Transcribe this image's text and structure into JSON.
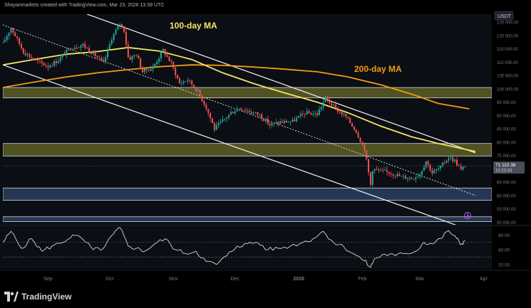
{
  "header": {
    "text": "Shayanmarkets created with TradingView.com, Mar 23, 2026 13:39 UTC"
  },
  "footer": {
    "brand": "TradingView"
  },
  "chart_data": {
    "type": "candlestick",
    "currency_label": "USDT",
    "last_price": "71 110.38",
    "countdown": "10:23:33",
    "annotations": [
      {
        "text": "100-day MA",
        "color": "#f5e663"
      },
      {
        "text": "200-day MA",
        "color": "#f39c12"
      }
    ],
    "x_ticks": [
      {
        "label": "Sep",
        "date": "2025-09-01"
      },
      {
        "label": "Oct",
        "date": "2025-10-01"
      },
      {
        "label": "Nov",
        "date": "2025-11-01"
      },
      {
        "label": "Dec",
        "date": "2025-12-01"
      },
      {
        "label": "2026",
        "date": "2026-01-01"
      },
      {
        "label": "Feb",
        "date": "2026-02-01"
      },
      {
        "label": "Mar",
        "date": "2026-03-01"
      },
      {
        "label": "Apr",
        "date": "2026-04-01"
      }
    ],
    "x_range": [
      "2025-08-10",
      "2026-04-05"
    ],
    "y_ticks": [
      "125 000.00",
      "120 000.00",
      "115 000.00",
      "110 000.00",
      "105 000.00",
      "100 000.00",
      "95 000.00",
      "90 000.00",
      "85 000.00",
      "80 000.00",
      "75 000.00",
      "70 000.00",
      "65 000.00",
      "60 000.00",
      "55 000.00",
      "50 000.00"
    ],
    "y_range": [
      49000,
      128000
    ],
    "zones": [
      {
        "from": 96600,
        "to": 100500,
        "color": "#8a8a30"
      },
      {
        "from": 74800,
        "to": 79500,
        "color": "#8a8a30"
      },
      {
        "from": 58200,
        "to": 62800,
        "color": "#3d5a8a"
      },
      {
        "from": 50200,
        "to": 52000,
        "color": "#3d5a8a"
      }
    ],
    "channel": {
      "upper": [
        [
          "2025-09-20",
          128000
        ],
        [
          "2026-03-28",
          76000
        ]
      ],
      "middle": [
        [
          "2025-08-10",
          124000
        ],
        [
          "2026-03-28",
          60000
        ]
      ],
      "lower": [
        [
          "2025-08-10",
          109000
        ],
        [
          "2026-03-20",
          48500
        ]
      ]
    },
    "ma100": [
      [
        "2025-08-10",
        109000
      ],
      [
        "2025-08-25",
        111000
      ],
      [
        "2025-09-10",
        113000
      ],
      [
        "2025-09-25",
        114000
      ],
      [
        "2025-10-10",
        115500
      ],
      [
        "2025-10-25",
        114200
      ],
      [
        "2025-11-10",
        111000
      ],
      [
        "2025-11-25",
        106000
      ],
      [
        "2025-12-10",
        102000
      ],
      [
        "2025-12-25",
        98500
      ],
      [
        "2026-01-10",
        95000
      ],
      [
        "2026-01-25",
        91000
      ],
      [
        "2026-02-10",
        86000
      ],
      [
        "2026-02-25",
        82000
      ],
      [
        "2026-03-10",
        79500
      ],
      [
        "2026-03-28",
        76500
      ]
    ],
    "ma200": [
      [
        "2025-08-10",
        100500
      ],
      [
        "2025-08-25",
        102500
      ],
      [
        "2025-09-10",
        104500
      ],
      [
        "2025-09-25",
        106000
      ],
      [
        "2025-10-10",
        107200
      ],
      [
        "2025-10-25",
        108300
      ],
      [
        "2025-11-10",
        109000
      ],
      [
        "2025-11-25",
        108800
      ],
      [
        "2025-12-10",
        108200
      ],
      [
        "2025-12-25",
        107400
      ],
      [
        "2026-01-10",
        106400
      ],
      [
        "2026-01-25",
        104500
      ],
      [
        "2026-02-10",
        101500
      ],
      [
        "2026-02-25",
        98000
      ],
      [
        "2026-03-10",
        94500
      ],
      [
        "2026-03-25",
        92500
      ]
    ],
    "close_path": [
      [
        "2025-08-10",
        117000
      ],
      [
        "2025-08-14",
        123000
      ],
      [
        "2025-08-20",
        114000
      ],
      [
        "2025-08-26",
        110500
      ],
      [
        "2025-09-01",
        108500
      ],
      [
        "2025-09-06",
        110800
      ],
      [
        "2025-09-12",
        115500
      ],
      [
        "2025-09-18",
        116500
      ],
      [
        "2025-09-24",
        112500
      ],
      [
        "2025-09-28",
        109600
      ],
      [
        "2025-10-02",
        119000
      ],
      [
        "2025-10-06",
        124500
      ],
      [
        "2025-10-08",
        122000
      ],
      [
        "2025-10-10",
        112000
      ],
      [
        "2025-10-11",
        111500
      ],
      [
        "2025-10-14",
        113000
      ],
      [
        "2025-10-17",
        106500
      ],
      [
        "2025-10-22",
        108000
      ],
      [
        "2025-10-27",
        114500
      ],
      [
        "2025-10-31",
        109500
      ],
      [
        "2025-11-04",
        102000
      ],
      [
        "2025-11-08",
        103500
      ],
      [
        "2025-11-13",
        99000
      ],
      [
        "2025-11-17",
        93000
      ],
      [
        "2025-11-21",
        85000
      ],
      [
        "2025-11-25",
        88000
      ],
      [
        "2025-11-29",
        91000
      ],
      [
        "2025-12-03",
        93000
      ],
      [
        "2025-12-08",
        91500
      ],
      [
        "2025-12-13",
        90200
      ],
      [
        "2025-12-18",
        86500
      ],
      [
        "2025-12-23",
        87500
      ],
      [
        "2025-12-29",
        87800
      ],
      [
        "2026-01-04",
        91000
      ],
      [
        "2026-01-10",
        90500
      ],
      [
        "2026-01-14",
        96500
      ],
      [
        "2026-01-19",
        92500
      ],
      [
        "2026-01-24",
        89500
      ],
      [
        "2026-01-29",
        84000
      ],
      [
        "2026-02-02",
        77500
      ],
      [
        "2026-02-05",
        64000
      ],
      [
        "2026-02-06",
        70000
      ],
      [
        "2026-02-10",
        69000
      ],
      [
        "2026-02-15",
        68500
      ],
      [
        "2026-02-20",
        67000
      ],
      [
        "2026-02-25",
        66500
      ],
      [
        "2026-03-01",
        68000
      ],
      [
        "2026-03-04",
        73000
      ],
      [
        "2026-03-07",
        68500
      ],
      [
        "2026-03-11",
        70500
      ],
      [
        "2026-03-15",
        74500
      ],
      [
        "2026-03-18",
        73000
      ],
      [
        "2026-03-21",
        69500
      ],
      [
        "2026-03-23",
        71110
      ]
    ],
    "rsi": {
      "y_ticks": [
        60,
        40,
        20
      ],
      "y_range": [
        14,
        72
      ],
      "levels": [
        50,
        30
      ],
      "line_color": "#d8d8d8",
      "values": [
        [
          "2025-08-10",
          50
        ],
        [
          "2025-08-14",
          65
        ],
        [
          "2025-08-19",
          42
        ],
        [
          "2025-08-24",
          55
        ],
        [
          "2025-08-29",
          38
        ],
        [
          "2025-09-03",
          45
        ],
        [
          "2025-09-08",
          50
        ],
        [
          "2025-09-13",
          60
        ],
        [
          "2025-09-18",
          54
        ],
        [
          "2025-09-23",
          40
        ],
        [
          "2025-09-28",
          42
        ],
        [
          "2025-10-03",
          62
        ],
        [
          "2025-10-06",
          70
        ],
        [
          "2025-10-10",
          45
        ],
        [
          "2025-10-14",
          42
        ],
        [
          "2025-10-18",
          38
        ],
        [
          "2025-10-23",
          48
        ],
        [
          "2025-10-28",
          55
        ],
        [
          "2025-11-02",
          40
        ],
        [
          "2025-11-07",
          35
        ],
        [
          "2025-11-12",
          38
        ],
        [
          "2025-11-17",
          24
        ],
        [
          "2025-11-22",
          20
        ],
        [
          "2025-11-27",
          32
        ],
        [
          "2025-12-02",
          45
        ],
        [
          "2025-12-07",
          48
        ],
        [
          "2025-12-12",
          50
        ],
        [
          "2025-12-17",
          40
        ],
        [
          "2025-12-22",
          42
        ],
        [
          "2025-12-28",
          45
        ],
        [
          "2026-01-03",
          50
        ],
        [
          "2026-01-08",
          55
        ],
        [
          "2026-01-13",
          65
        ],
        [
          "2026-01-18",
          50
        ],
        [
          "2026-01-23",
          44
        ],
        [
          "2026-01-28",
          34
        ],
        [
          "2026-02-02",
          25
        ],
        [
          "2026-02-05",
          16
        ],
        [
          "2026-02-07",
          28
        ],
        [
          "2026-02-12",
          34
        ],
        [
          "2026-02-17",
          32
        ],
        [
          "2026-02-22",
          35
        ],
        [
          "2026-02-27",
          38
        ],
        [
          "2026-03-03",
          50
        ],
        [
          "2026-03-07",
          48
        ],
        [
          "2026-03-11",
          55
        ],
        [
          "2026-03-15",
          66
        ],
        [
          "2026-03-19",
          55
        ],
        [
          "2026-03-21",
          47
        ],
        [
          "2026-03-23",
          53
        ]
      ]
    }
  }
}
